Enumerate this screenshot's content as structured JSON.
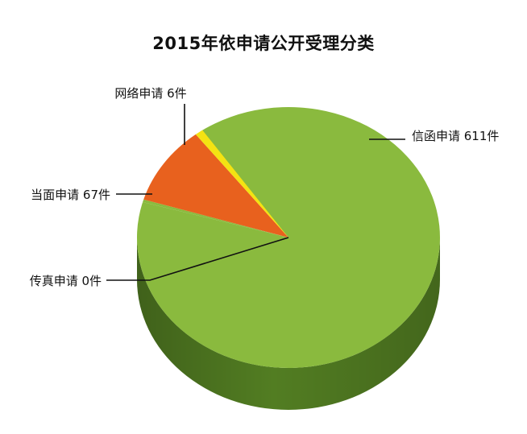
{
  "chart_data": {
    "type": "pie",
    "title": "2015年依申请公开受理分类",
    "slices": [
      {
        "label": "信函申请 611件",
        "value": 611,
        "color": "#8aba3e",
        "side_color": "#527d22"
      },
      {
        "label": "传真申请 0件",
        "value": 0,
        "color": "#8aba3e",
        "side_color": "#527d22"
      },
      {
        "label": "当面申请 67件",
        "value": 67,
        "color": "#e8611e",
        "side_color": "#a8411a"
      },
      {
        "label": "网络申请 6件",
        "value": 6,
        "color": "#f4e312",
        "side_color": "#b5a80c"
      }
    ],
    "style": "3d"
  }
}
